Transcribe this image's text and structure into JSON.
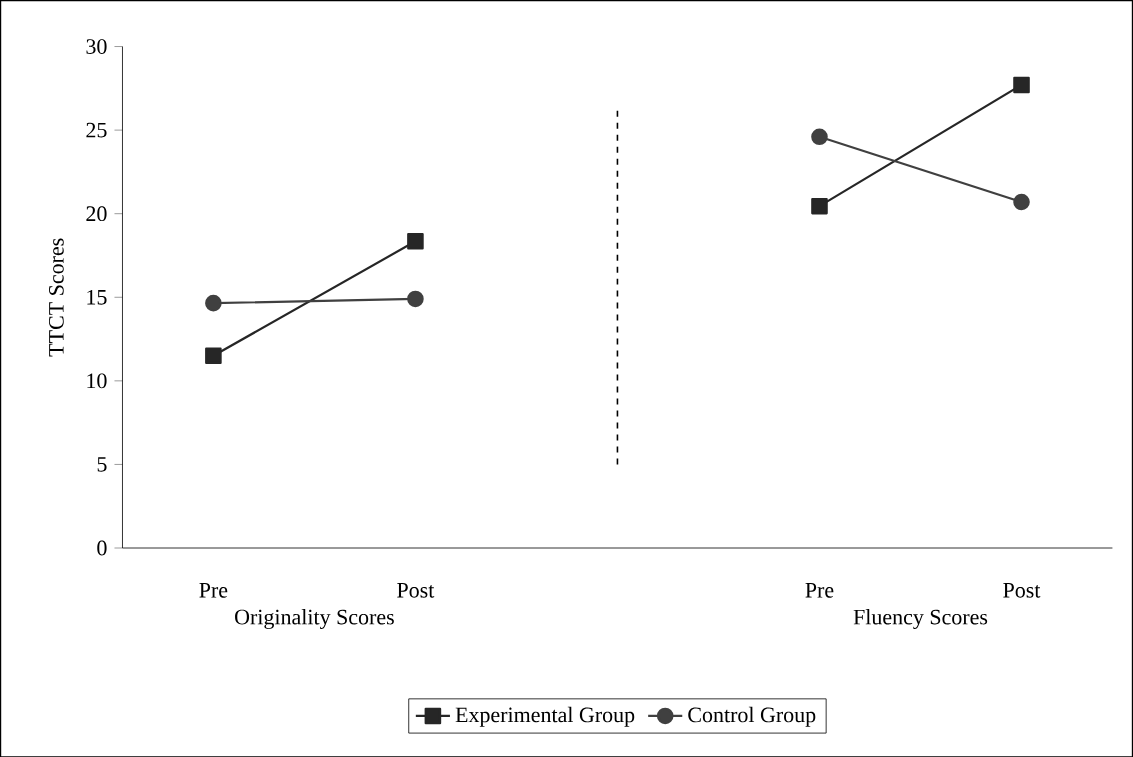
{
  "chart_data": {
    "type": "line",
    "ylabel": "TTCT  Scores",
    "categories": [
      "Pre",
      "Post",
      null,
      "Pre",
      "Post"
    ],
    "series": [
      {
        "name": "Experimental Group",
        "color": "#262626",
        "marker": "square",
        "values": [
          11.5,
          18.35,
          null,
          20.45,
          27.7
        ]
      },
      {
        "name": "Control Group",
        "color": "#404040",
        "marker": "circle",
        "values": [
          14.65,
          14.9,
          null,
          24.6,
          20.7
        ]
      }
    ],
    "ylim": [
      0,
      30
    ],
    "yticks": [
      0,
      5,
      10,
      15,
      20,
      25,
      30
    ],
    "annotations": [
      "Originality Scores",
      "Fluency Scores"
    ],
    "legend": "bottom"
  }
}
